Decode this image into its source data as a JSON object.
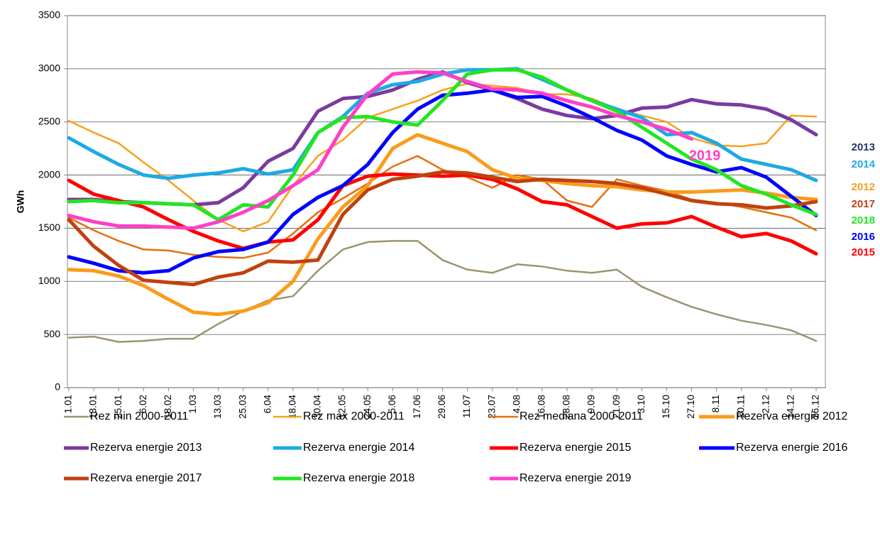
{
  "chart_data": {
    "type": "line",
    "y_label": "GWh",
    "categories": [
      "1.01",
      "13.01",
      "25.01",
      "6.02",
      "18.02",
      "1.03",
      "13.03",
      "25.03",
      "6.04",
      "18.04",
      "30.04",
      "12.05",
      "24.05",
      "5.06",
      "17.06",
      "29.06",
      "11.07",
      "23.07",
      "4.08",
      "16.08",
      "28.08",
      "9.09",
      "21.09",
      "3.10",
      "15.10",
      "27.10",
      "8.11",
      "20.11",
      "2.12",
      "14.12",
      "26.12"
    ],
    "ylim": [
      0,
      3500
    ],
    "yticks": [
      0,
      500,
      1000,
      1500,
      2000,
      2500,
      3000,
      3500
    ],
    "grid": true,
    "series": [
      {
        "name": "Rez min 2000-2011",
        "color": "#9c946e",
        "line_width": 2.5,
        "values": [
          470,
          480,
          430,
          440,
          460,
          460,
          600,
          720,
          820,
          860,
          1100,
          1300,
          1370,
          1380,
          1380,
          1200,
          1110,
          1080,
          1160,
          1140,
          1100,
          1080,
          1110,
          950,
          850,
          760,
          690,
          630,
          590,
          540,
          440
        ]
      },
      {
        "name": "Rez max 2000-2011",
        "color": "#f7a21b",
        "line_width": 2.5,
        "values": [
          2510,
          2400,
          2300,
          2120,
          1950,
          1760,
          1580,
          1470,
          1560,
          1900,
          2180,
          2330,
          2540,
          2620,
          2700,
          2800,
          2860,
          2840,
          2820,
          2760,
          2760,
          2720,
          2620,
          2560,
          2500,
          2350,
          2280,
          2270,
          2300,
          2560,
          2550
        ]
      },
      {
        "name": "Rez mediana 2000-2011",
        "color": "#e4700f",
        "line_width": 2.5,
        "values": [
          1600,
          1480,
          1380,
          1300,
          1290,
          1250,
          1230,
          1220,
          1270,
          1450,
          1650,
          1780,
          1920,
          2080,
          2180,
          2050,
          1980,
          1880,
          2000,
          1960,
          1760,
          1700,
          1960,
          1900,
          1850,
          1770,
          1740,
          1700,
          1650,
          1600,
          1480
        ]
      },
      {
        "name": "Rezerva energie 2012",
        "color": "#f99c1c",
        "line_width": 5,
        "values": [
          1110,
          1100,
          1050,
          960,
          830,
          710,
          690,
          720,
          800,
          1000,
          1400,
          1700,
          1900,
          2250,
          2380,
          2300,
          2220,
          2050,
          1970,
          1950,
          1920,
          1900,
          1890,
          1860,
          1840,
          1840,
          1850,
          1860,
          1830,
          1790,
          1770
        ]
      },
      {
        "name": "Rezerva energie 2013",
        "color": "#7a3b9e",
        "line_width": 5,
        "values": [
          1770,
          1770,
          1750,
          1740,
          1730,
          1720,
          1740,
          1880,
          2130,
          2250,
          2600,
          2720,
          2740,
          2800,
          2900,
          2970,
          2870,
          2800,
          2720,
          2620,
          2560,
          2530,
          2560,
          2630,
          2640,
          2710,
          2670,
          2660,
          2620,
          2520,
          2380
        ]
      },
      {
        "name": "Rezerva energie 2014",
        "color": "#1fa9e3",
        "line_width": 5,
        "values": [
          2350,
          2220,
          2100,
          2000,
          1970,
          2000,
          2020,
          2060,
          2010,
          2050,
          2400,
          2550,
          2770,
          2850,
          2880,
          2950,
          2990,
          2990,
          3000,
          2900,
          2800,
          2700,
          2620,
          2540,
          2380,
          2400,
          2300,
          2150,
          2100,
          2050,
          1950
        ]
      },
      {
        "name": "Rezerva energie 2015",
        "color": "#ff0000",
        "line_width": 5,
        "values": [
          1950,
          1820,
          1760,
          1700,
          1580,
          1470,
          1380,
          1310,
          1370,
          1390,
          1580,
          1900,
          1990,
          2010,
          2000,
          1990,
          2000,
          1960,
          1870,
          1750,
          1720,
          1610,
          1500,
          1540,
          1550,
          1610,
          1510,
          1420,
          1450,
          1380,
          1260
        ]
      },
      {
        "name": "Rezerva energie 2016",
        "color": "#0000ff",
        "line_width": 5,
        "values": [
          1230,
          1170,
          1100,
          1080,
          1100,
          1220,
          1280,
          1300,
          1370,
          1630,
          1790,
          1900,
          2100,
          2400,
          2620,
          2750,
          2770,
          2800,
          2730,
          2740,
          2650,
          2540,
          2420,
          2330,
          2180,
          2100,
          2030,
          2070,
          1980,
          1800,
          1620
        ]
      },
      {
        "name": "Rezerva energie 2017",
        "color": "#c0410e",
        "line_width": 5,
        "values": [
          1580,
          1330,
          1150,
          1010,
          990,
          970,
          1040,
          1080,
          1190,
          1180,
          1200,
          1630,
          1860,
          1960,
          1990,
          2030,
          2020,
          1980,
          1940,
          1960,
          1950,
          1940,
          1920,
          1880,
          1820,
          1760,
          1730,
          1720,
          1690,
          1710,
          1750
        ]
      },
      {
        "name": "Rezerva energie 2018",
        "color": "#22e622",
        "line_width": 5,
        "values": [
          1750,
          1760,
          1740,
          1740,
          1730,
          1720,
          1580,
          1720,
          1700,
          2000,
          2400,
          2540,
          2550,
          2500,
          2470,
          2700,
          2950,
          2990,
          2990,
          2920,
          2800,
          2700,
          2600,
          2450,
          2300,
          2150,
          2050,
          1900,
          1820,
          1720,
          1630
        ]
      },
      {
        "name": "Rezerva energie 2019",
        "color": "#ff3fc8",
        "line_width": 5,
        "values": [
          1620,
          1560,
          1520,
          1520,
          1510,
          1500,
          1560,
          1650,
          1760,
          1900,
          2050,
          2450,
          2760,
          2950,
          2970,
          2960,
          2880,
          2810,
          2800,
          2770,
          2700,
          2640,
          2560,
          2500,
          2430,
          2340,
          null,
          null,
          null,
          null,
          null
        ]
      }
    ],
    "annotations": [
      {
        "text": "2019",
        "color": "#ff3fc8"
      },
      {
        "text": "2013",
        "color": "#1f3864"
      },
      {
        "text": "2014",
        "color": "#1fa9e3"
      },
      {
        "text": "2012",
        "color": "#f99c1c"
      },
      {
        "text": "2017",
        "color": "#c0410e"
      },
      {
        "text": "2018",
        "color": "#22e622"
      },
      {
        "text": "2016",
        "color": "#0000ff"
      },
      {
        "text": "2015",
        "color": "#ff0000"
      }
    ]
  }
}
